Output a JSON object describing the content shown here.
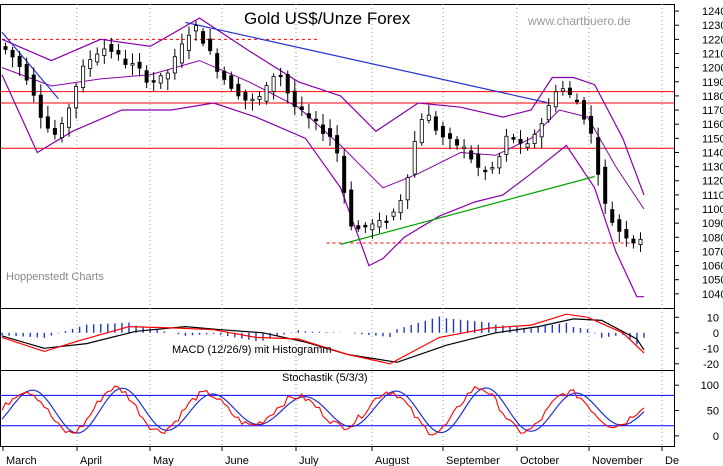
{
  "chart_data": {
    "type": "candlestick",
    "title": "Gold US$/Unze Forex",
    "watermark": "www.chartbuero.de",
    "source_label": "Hoppenstedt Charts",
    "x_months": [
      "March",
      "April",
      "May",
      "June",
      "July",
      "August",
      "September",
      "October",
      "November",
      "De"
    ],
    "price_axis": {
      "ylim": [
        1030,
        1245
      ],
      "ticks": [
        1040,
        1050,
        1060,
        1070,
        1080,
        1090,
        1100,
        1110,
        1120,
        1130,
        1140,
        1150,
        1160,
        1170,
        1180,
        1190,
        1200,
        1210,
        1220,
        1230,
        1240
      ]
    },
    "close_path": [
      [
        0,
        1215
      ],
      [
        4,
        1205
      ],
      [
        8,
        1190
      ],
      [
        12,
        1160
      ],
      [
        16,
        1150
      ],
      [
        18,
        1165
      ],
      [
        22,
        1195
      ],
      [
        26,
        1210
      ],
      [
        30,
        1215
      ],
      [
        34,
        1205
      ],
      [
        38,
        1200
      ],
      [
        42,
        1190
      ],
      [
        46,
        1192
      ],
      [
        50,
        1210
      ],
      [
        54,
        1230
      ],
      [
        56,
        1225
      ],
      [
        58,
        1215
      ],
      [
        62,
        1195
      ],
      [
        66,
        1185
      ],
      [
        70,
        1175
      ],
      [
        74,
        1180
      ],
      [
        78,
        1200
      ],
      [
        80,
        1190
      ],
      [
        82,
        1175
      ],
      [
        86,
        1165
      ],
      [
        90,
        1158
      ],
      [
        94,
        1150
      ],
      [
        96,
        1130
      ],
      [
        98,
        1095
      ],
      [
        100,
        1085
      ],
      [
        104,
        1088
      ],
      [
        108,
        1090
      ],
      [
        112,
        1100
      ],
      [
        114,
        1115
      ],
      [
        116,
        1135
      ],
      [
        118,
        1160
      ],
      [
        120,
        1170
      ],
      [
        122,
        1160
      ],
      [
        126,
        1148
      ],
      [
        130,
        1145
      ],
      [
        132,
        1140
      ],
      [
        136,
        1125
      ],
      [
        140,
        1130
      ],
      [
        143,
        1150
      ],
      [
        146,
        1150
      ],
      [
        148,
        1138
      ],
      [
        150,
        1150
      ],
      [
        154,
        1165
      ],
      [
        156,
        1180
      ],
      [
        158,
        1190
      ],
      [
        160,
        1180
      ],
      [
        162,
        1180
      ],
      [
        164,
        1172
      ],
      [
        166,
        1160
      ],
      [
        168,
        1145
      ],
      [
        170,
        1110
      ],
      [
        172,
        1095
      ],
      [
        175,
        1085
      ],
      [
        178,
        1080
      ],
      [
        180,
        1075
      ],
      [
        182,
        1085
      ]
    ],
    "ma_path": [
      [
        0,
        1200
      ],
      [
        14,
        1187
      ],
      [
        28,
        1192
      ],
      [
        42,
        1195
      ],
      [
        56,
        1205
      ],
      [
        70,
        1190
      ],
      [
        84,
        1172
      ],
      [
        96,
        1145
      ],
      [
        108,
        1115
      ],
      [
        118,
        1125
      ],
      [
        130,
        1140
      ],
      [
        140,
        1138
      ],
      [
        150,
        1150
      ],
      [
        158,
        1170
      ],
      [
        166,
        1165
      ],
      [
        174,
        1130
      ],
      [
        182,
        1100
      ]
    ],
    "bollinger_upper": [
      [
        0,
        1220
      ],
      [
        14,
        1205
      ],
      [
        28,
        1220
      ],
      [
        42,
        1215
      ],
      [
        56,
        1235
      ],
      [
        70,
        1212
      ],
      [
        84,
        1190
      ],
      [
        96,
        1180
      ],
      [
        106,
        1155
      ],
      [
        118,
        1175
      ],
      [
        130,
        1172
      ],
      [
        142,
        1165
      ],
      [
        150,
        1170
      ],
      [
        156,
        1193
      ],
      [
        162,
        1193
      ],
      [
        168,
        1188
      ],
      [
        176,
        1150
      ],
      [
        182,
        1110
      ]
    ],
    "bollinger_lower": [
      [
        0,
        1195
      ],
      [
        10,
        1140
      ],
      [
        20,
        1155
      ],
      [
        34,
        1170
      ],
      [
        48,
        1170
      ],
      [
        60,
        1175
      ],
      [
        72,
        1165
      ],
      [
        86,
        1150
      ],
      [
        96,
        1115
      ],
      [
        104,
        1060
      ],
      [
        108,
        1065
      ],
      [
        114,
        1080
      ],
      [
        124,
        1095
      ],
      [
        134,
        1105
      ],
      [
        142,
        1110
      ],
      [
        150,
        1125
      ],
      [
        160,
        1145
      ],
      [
        168,
        1115
      ],
      [
        174,
        1070
      ],
      [
        180,
        1038
      ],
      [
        182,
        1038
      ]
    ],
    "horizontal_levels": [
      {
        "value": 1183,
        "color": "#ff0000",
        "style": "solid"
      },
      {
        "value": 1175,
        "color": "#ff0000",
        "style": "solid"
      },
      {
        "value": 1143,
        "color": "#ff0000",
        "style": "solid"
      },
      {
        "value": 1220,
        "color": "#ff0000",
        "style": "dashed",
        "from": 0,
        "to": 90
      },
      {
        "value": 1076,
        "color": "#ff0000",
        "style": "dashed",
        "from": 92,
        "to": 182
      }
    ],
    "trendlines": [
      {
        "from": [
          52,
          1232
        ],
        "to": [
          155,
          1175
        ],
        "color": "#2233cc"
      },
      {
        "from": [
          0,
          1225
        ],
        "to": [
          16,
          1178
        ],
        "color": "#2233cc"
      },
      {
        "from": [
          96,
          1075
        ],
        "to": [
          168,
          1123
        ],
        "color": "#00a000"
      }
    ],
    "macd": {
      "label": "MACD (12/26/9) mit Histogramm",
      "ylim": [
        -24,
        16
      ],
      "ticks": [
        10,
        0,
        -10,
        -20
      ],
      "macd_path": [
        [
          0,
          -3
        ],
        [
          12,
          -12
        ],
        [
          22,
          -5
        ],
        [
          36,
          4
        ],
        [
          50,
          3
        ],
        [
          60,
          2
        ],
        [
          72,
          -3
        ],
        [
          84,
          -4
        ],
        [
          98,
          -14
        ],
        [
          110,
          -20
        ],
        [
          124,
          -3
        ],
        [
          138,
          3
        ],
        [
          150,
          5
        ],
        [
          160,
          12
        ],
        [
          166,
          10
        ],
        [
          176,
          0
        ],
        [
          182,
          -13
        ]
      ],
      "signal_path": [
        [
          0,
          -2
        ],
        [
          12,
          -10
        ],
        [
          24,
          -7
        ],
        [
          38,
          1
        ],
        [
          52,
          4
        ],
        [
          62,
          2
        ],
        [
          74,
          0
        ],
        [
          86,
          -6
        ],
        [
          98,
          -14
        ],
        [
          112,
          -19
        ],
        [
          126,
          -8
        ],
        [
          140,
          0
        ],
        [
          152,
          4
        ],
        [
          162,
          9
        ],
        [
          170,
          8
        ],
        [
          180,
          -4
        ],
        [
          182,
          -11
        ]
      ]
    },
    "stochastic": {
      "label": "Stochastik (5/3/3)",
      "ylim": [
        -20,
        130
      ],
      "ticks": [
        100,
        50,
        0
      ],
      "levels": [
        {
          "value": 80,
          "color": "#0000ff"
        },
        {
          "value": 20,
          "color": "#0000ff"
        }
      ]
    }
  }
}
